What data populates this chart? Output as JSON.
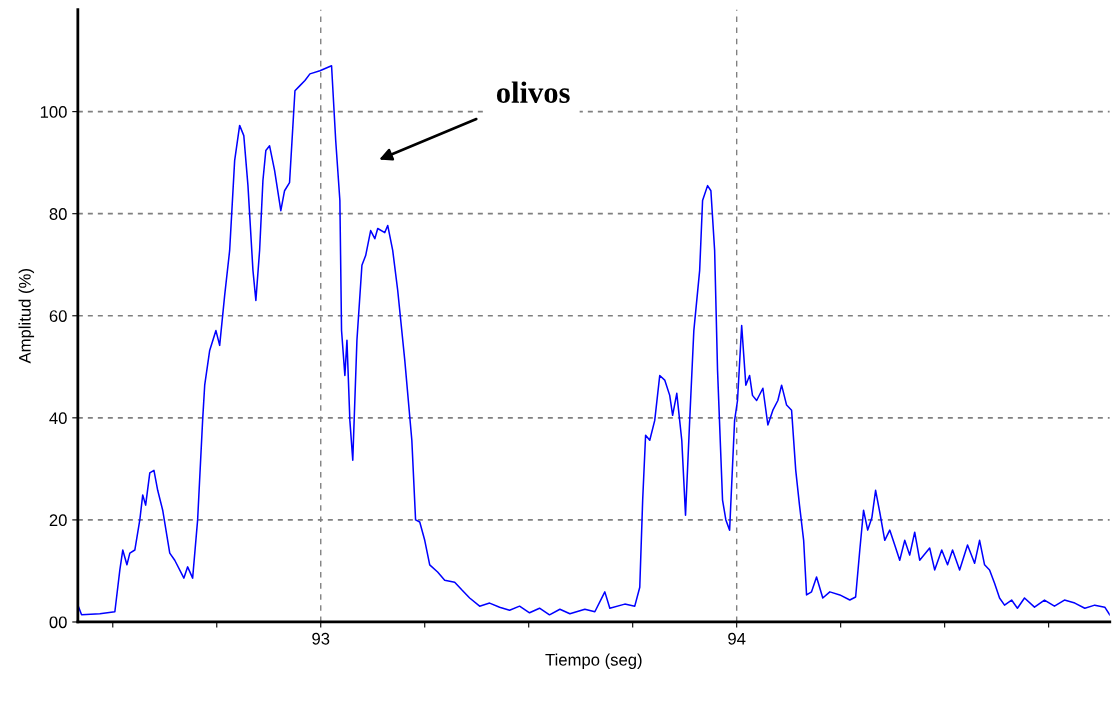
{
  "chart_data": {
    "type": "line",
    "xlabel": "Tiempo (seg)",
    "ylabel": "Amplitud (%)",
    "xlim": [
      92.416,
      94.897
    ],
    "ylim": [
      0,
      120
    ],
    "xticks": [
      {
        "value": 92.5,
        "label": null
      },
      {
        "value": 92.75,
        "label": null
      },
      93,
      {
        "value": 93.25,
        "label": null
      },
      {
        "value": 93.5,
        "label": null
      },
      {
        "value": 93.75,
        "label": null
      },
      94,
      {
        "value": 94.25,
        "label": null
      },
      {
        "value": 94.5,
        "label": null
      },
      {
        "value": 94.75,
        "label": null
      }
    ],
    "yticks": [
      {
        "value": 0,
        "label": "00"
      },
      20,
      40,
      60,
      80,
      100
    ],
    "grid": true,
    "line_style": "solid",
    "marker": "none",
    "annotations": [
      "olivos"
    ],
    "series": [
      {
        "color": "#0000ff",
        "x": [
          92.416,
          92.425,
          92.469,
          92.505,
          92.517,
          92.524,
          92.534,
          92.541,
          92.553,
          92.565,
          92.572,
          92.579,
          92.589,
          92.599,
          92.608,
          92.62,
          92.637,
          92.649,
          92.671,
          92.68,
          92.692,
          92.704,
          92.716,
          92.721,
          92.733,
          92.748,
          92.757,
          92.769,
          92.781,
          92.793,
          92.805,
          92.815,
          92.825,
          92.837,
          92.844,
          92.853,
          92.861,
          92.868,
          92.877,
          92.889,
          92.904,
          92.913,
          92.925,
          92.938,
          92.95,
          92.962,
          92.974,
          92.998,
          93.026,
          93.036,
          93.046,
          93.05,
          93.058,
          93.063,
          93.07,
          93.077,
          93.087,
          93.099,
          93.108,
          93.12,
          93.13,
          93.137,
          93.154,
          93.161,
          93.173,
          93.185,
          93.202,
          93.219,
          93.228,
          93.238,
          93.25,
          93.262,
          93.281,
          93.298,
          93.322,
          93.339,
          93.358,
          93.382,
          93.406,
          93.43,
          93.454,
          93.478,
          93.502,
          93.526,
          93.55,
          93.575,
          93.599,
          93.635,
          93.659,
          93.683,
          93.695,
          93.731,
          93.755,
          93.767,
          93.774,
          93.781,
          93.791,
          93.803,
          93.815,
          93.827,
          93.839,
          93.846,
          93.856,
          93.868,
          93.877,
          93.887,
          93.897,
          93.911,
          93.918,
          93.93,
          93.938,
          93.947,
          93.954,
          93.966,
          93.974,
          93.983,
          93.995,
          94.002,
          94.012,
          94.022,
          94.031,
          94.038,
          94.048,
          94.063,
          94.075,
          94.087,
          94.099,
          94.108,
          94.12,
          94.132,
          94.142,
          94.151,
          94.161,
          94.168,
          94.18,
          94.192,
          94.207,
          94.224,
          94.248,
          94.272,
          94.286,
          94.296,
          94.305,
          94.315,
          94.325,
          94.334,
          94.344,
          94.356,
          94.368,
          94.38,
          94.392,
          94.404,
          94.416,
          94.428,
          94.44,
          94.464,
          94.476,
          94.493,
          94.507,
          94.519,
          94.536,
          94.555,
          94.572,
          94.584,
          94.596,
          94.608,
          94.62,
          94.632,
          94.644,
          94.661,
          94.675,
          94.692,
          94.716,
          94.74,
          94.764,
          94.788,
          94.813,
          94.837,
          94.861,
          94.885,
          94.897
        ],
        "values": [
          3.3,
          1.4,
          1.6,
          2.0,
          10.2,
          14.1,
          11.2,
          13.5,
          14.1,
          20.0,
          24.9,
          22.9,
          29.2,
          29.7,
          25.8,
          21.9,
          13.5,
          12.1,
          8.6,
          10.8,
          8.6,
          20.0,
          39.5,
          46.4,
          53.2,
          57.1,
          54.2,
          64.0,
          72.8,
          90.4,
          97.3,
          95.3,
          85.5,
          68.9,
          63.0,
          72.8,
          86.5,
          92.4,
          93.3,
          88.5,
          80.6,
          84.5,
          86.1,
          104.1,
          105.1,
          106.1,
          107.4,
          108.0,
          109.0,
          94.3,
          82.6,
          57.1,
          48.3,
          55.2,
          39.5,
          31.7,
          55.2,
          69.9,
          71.8,
          76.7,
          75.1,
          77.1,
          76.3,
          77.7,
          72.8,
          65.0,
          51.3,
          35.6,
          20.0,
          19.6,
          16.0,
          11.2,
          9.8,
          8.2,
          7.8,
          6.3,
          4.7,
          3.1,
          3.7,
          2.9,
          2.3,
          3.1,
          1.8,
          2.7,
          1.4,
          2.5,
          1.6,
          2.5,
          2.0,
          5.9,
          2.7,
          3.5,
          3.1,
          6.8,
          23.9,
          36.6,
          35.6,
          39.5,
          48.3,
          47.4,
          44.4,
          40.5,
          44.8,
          35.6,
          20.9,
          39.5,
          57.1,
          68.9,
          82.6,
          85.5,
          84.5,
          72.8,
          49.3,
          23.9,
          20.0,
          18.0,
          39.5,
          43.4,
          58.1,
          46.4,
          48.3,
          44.4,
          43.4,
          45.8,
          38.6,
          41.5,
          43.4,
          46.4,
          42.5,
          41.5,
          29.7,
          22.9,
          16.0,
          5.3,
          5.9,
          8.8,
          4.7,
          5.9,
          5.3,
          4.3,
          4.9,
          14.1,
          21.9,
          18.0,
          20.4,
          25.8,
          21.5,
          16.0,
          18.0,
          15.1,
          12.1,
          16.0,
          13.1,
          17.6,
          12.1,
          14.5,
          10.2,
          14.1,
          11.2,
          14.1,
          10.2,
          15.1,
          11.5,
          16.0,
          11.2,
          10.2,
          7.6,
          4.7,
          3.3,
          4.3,
          2.7,
          4.7,
          2.9,
          4.3,
          3.1,
          4.3,
          3.7,
          2.7,
          3.3,
          2.9,
          1.4
        ]
      }
    ]
  }
}
